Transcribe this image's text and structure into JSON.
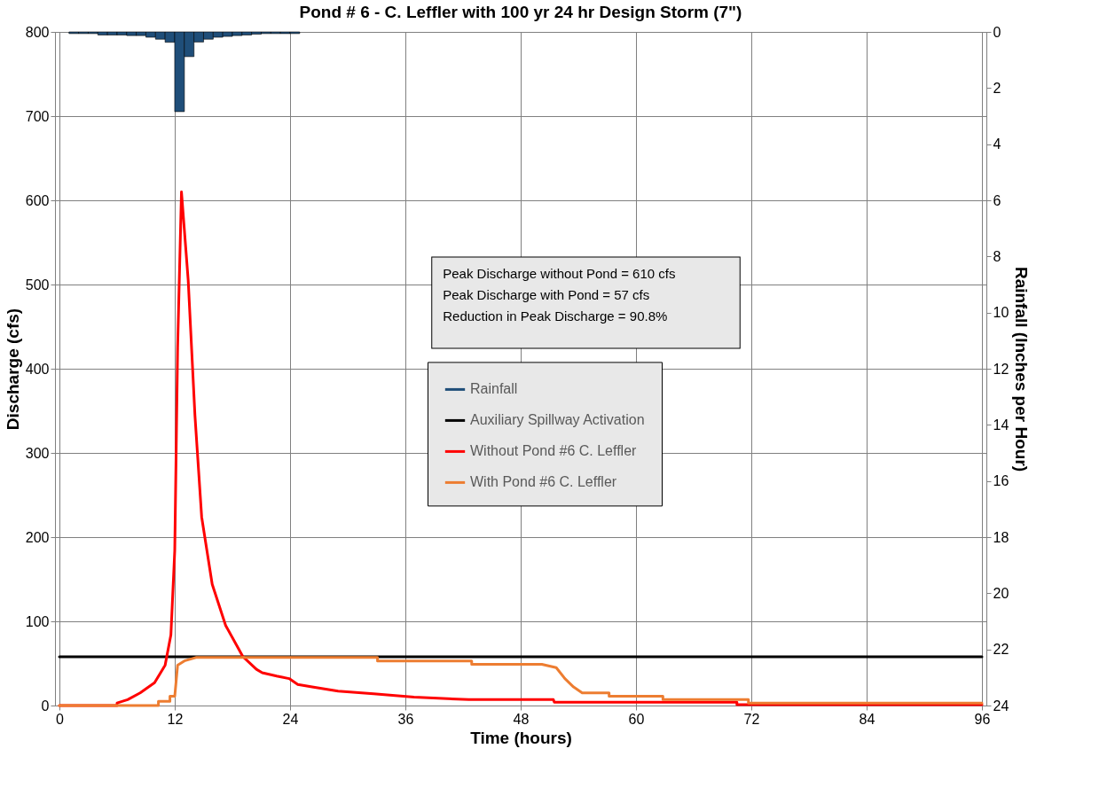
{
  "chart_data": {
    "type": "line",
    "title": "Pond # 6 - C. Leffler with 100 yr 24 hr Design Storm (7\")",
    "xlabel": "Time (hours)",
    "ylabel": "Discharge (cfs)",
    "y2label": "Rainfall  (Inches per Hour)",
    "xlim": [
      0,
      96
    ],
    "xticks": [
      0,
      12,
      24,
      36,
      48,
      60,
      72,
      84,
      96
    ],
    "ylim": [
      0,
      800
    ],
    "yticks": [
      0,
      100,
      200,
      300,
      400,
      500,
      600,
      700,
      800
    ],
    "y2lim": [
      24,
      0
    ],
    "y2ticks": [
      0,
      2,
      4,
      6,
      8,
      10,
      12,
      14,
      16,
      18,
      20,
      22,
      24
    ],
    "grid": true,
    "legend": "right",
    "annotations": [
      "Peak Discharge without Pond = 610 cfs",
      "Peak Discharge with Pond = 57 cfs",
      "Reduction in Peak Discharge = 90.8%"
    ],
    "series": [
      {
        "name": "Rainfall",
        "type": "bar",
        "axis": "y2",
        "color": "#1f4e79",
        "x": [
          1.5,
          2.5,
          3.5,
          4.5,
          5.5,
          6.5,
          7.5,
          8.5,
          9.5,
          10.5,
          11.5,
          12.5,
          13.5,
          14.5,
          15.5,
          16.5,
          17.5,
          18.5,
          19.5,
          20.5,
          21.5,
          22.5,
          23.5,
          24.5
        ],
        "values": [
          0.06,
          0.06,
          0.06,
          0.11,
          0.11,
          0.11,
          0.13,
          0.13,
          0.19,
          0.26,
          0.37,
          2.84,
          0.88,
          0.36,
          0.26,
          0.19,
          0.16,
          0.13,
          0.11,
          0.08,
          0.06,
          0.06,
          0.06,
          0.06
        ]
      },
      {
        "name": "Auxiliary Spillway Activation",
        "color": "#000000",
        "x": [
          0,
          96
        ],
        "values": [
          58,
          58
        ]
      },
      {
        "name": "Without Pond #6 C. Leffler",
        "color": "#ff0000",
        "x": [
          0,
          6.0,
          6.0,
          7.1,
          8.4,
          9.9,
          11.0,
          11.6,
          12.0,
          12.3,
          12.7,
          13.4,
          14.1,
          14.8,
          15.9,
          17.3,
          19.1,
          20.5,
          21.1,
          22.6,
          23.9,
          24.8,
          26.3,
          29.0,
          32.7,
          36.9,
          42.6,
          51.4,
          51.5,
          70.5,
          70.5,
          96
        ],
        "values": [
          0,
          0,
          3,
          7,
          15,
          27,
          48,
          84,
          184,
          425,
          610,
          505,
          345,
          224,
          144,
          95,
          58,
          43,
          39,
          35,
          32,
          25,
          22,
          17,
          14,
          10,
          7,
          7,
          4,
          4,
          1,
          1
        ]
      },
      {
        "name": "With Pond #6 C. Leffler",
        "color": "#ed7d31",
        "x": [
          0,
          10.3,
          10.3,
          11.5,
          11.5,
          12.0,
          12.3,
          13.0,
          14.2,
          33.1,
          33.1,
          42.9,
          42.9,
          50.2,
          51.7,
          52.6,
          53.5,
          54.4,
          57.2,
          57.2,
          62.8,
          62.8,
          71.7,
          71.7,
          96
        ],
        "values": [
          0,
          0,
          5,
          5,
          11,
          11,
          48,
          53,
          57,
          57,
          53,
          53,
          49,
          49,
          45,
          32,
          22,
          15,
          15,
          11,
          11,
          7,
          7,
          3,
          3
        ]
      }
    ]
  }
}
